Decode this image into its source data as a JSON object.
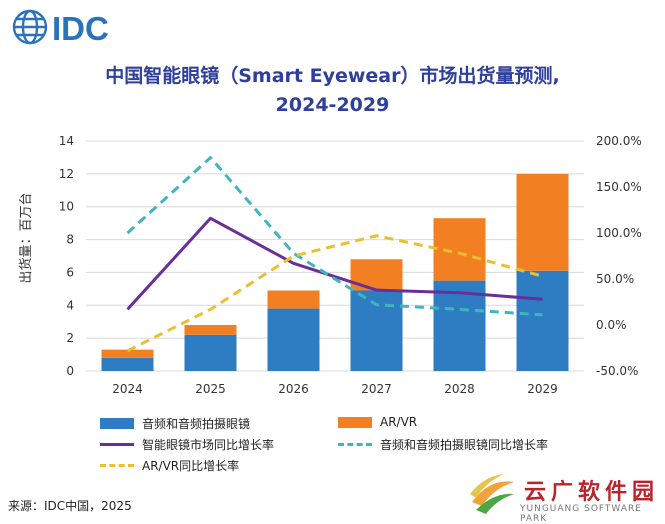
{
  "logo": {
    "text": "IDC",
    "color": "#2a73bc"
  },
  "title": {
    "line1": "中国智能眼镜（Smart Eyewear）市场出货量预测,",
    "line2": "2024-2029"
  },
  "chart_data": {
    "type": "bar",
    "stacked": true,
    "categories": [
      "2024",
      "2025",
      "2026",
      "2027",
      "2028",
      "2029"
    ],
    "ylabel": "出货量：百万台",
    "ylim": [
      0,
      14
    ],
    "y_ticks": [
      "0",
      "2",
      "4",
      "6",
      "8",
      "10",
      "12",
      "14"
    ],
    "y2lim": [
      -50,
      200
    ],
    "y2_ticks": [
      "-50.0%",
      "0.0%",
      "50.0%",
      "100.0%",
      "150.0%",
      "200.0%"
    ],
    "bar_series": [
      {
        "name": "音频和音频拍摄眼镜",
        "color": "#2e7dc2",
        "values": [
          0.8,
          2.2,
          3.8,
          4.9,
          5.5,
          6.1
        ]
      },
      {
        "name": "AR/VR",
        "color": "#f28023",
        "values": [
          0.5,
          0.6,
          1.1,
          1.9,
          3.8,
          5.9
        ]
      }
    ],
    "line_series": [
      {
        "name": "智能眼镜市场同比增长率",
        "color": "#6a2e99",
        "style": "solid",
        "values": [
          17,
          116,
          67,
          38,
          35,
          28
        ]
      },
      {
        "name": "音频和音频拍摄眼镜同比增长率",
        "color": "#3fb6bd",
        "style": "dashed",
        "values": [
          100,
          182,
          78,
          22,
          17,
          11
        ]
      },
      {
        "name": "AR/VR同比增长率",
        "color": "#e9c02f",
        "style": "dashed",
        "values": [
          -28,
          17,
          75,
          97,
          78,
          53
        ]
      }
    ],
    "legend_position": "bottom"
  },
  "source": "来源：IDC中国，2025",
  "watermark": {
    "cn": "云广软件园",
    "en": "YUNGUANG SOFTWARE PARK"
  }
}
